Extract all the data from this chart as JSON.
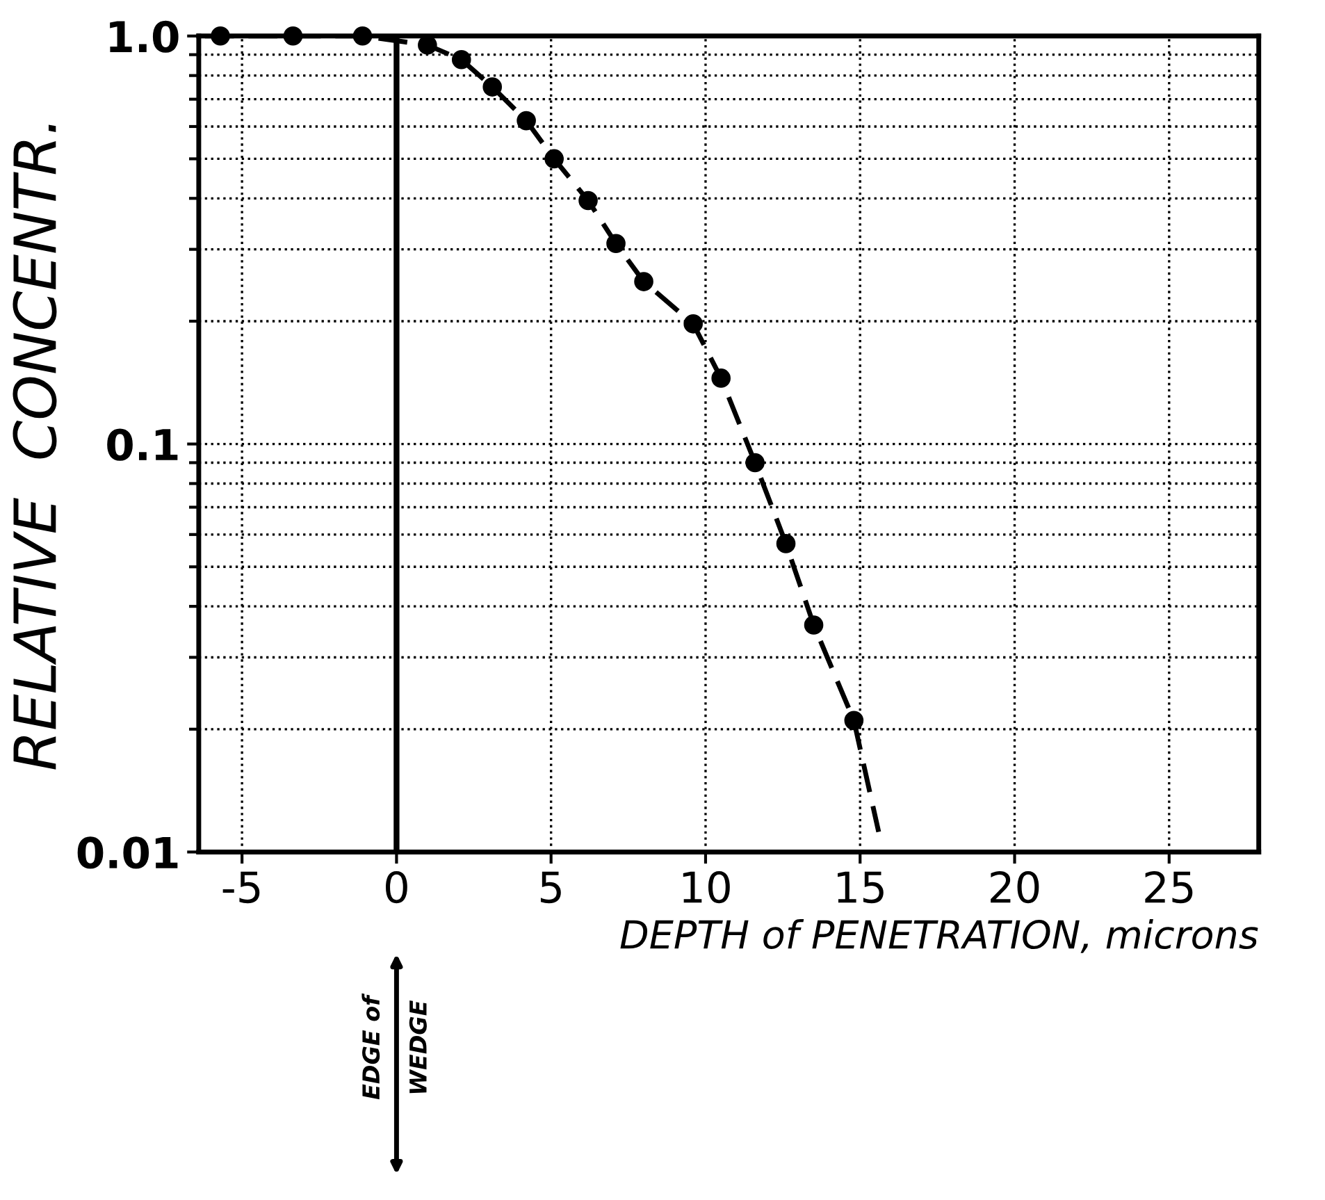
{
  "chart_data": {
    "type": "scatter",
    "xlabel": "DEPTH of PENETRATION, microns",
    "ylabel": "RELATIVE  CONCENTR.",
    "log": "y",
    "xlim": [
      -6.4,
      27.9
    ],
    "ylim": [
      0.01,
      1.0
    ],
    "xticks": [
      -5,
      0,
      5,
      10,
      15,
      20,
      25
    ],
    "yticks": [
      0.01,
      0.1,
      {
        "value": 1,
        "label": "1.0"
      }
    ],
    "grid": true,
    "ref_lines": [
      {
        "axis": "x",
        "value": 0,
        "label": "EDGE of\nWEDGE"
      }
    ],
    "series": [
      {
        "color": "#000000",
        "marker": "circle",
        "x": [
          -5.7,
          -3.35,
          -1.1,
          1.0,
          2.1,
          3.1,
          4.2,
          5.1,
          6.2,
          7.1,
          8.0,
          9.6,
          10.5,
          11.6,
          12.6,
          13.5,
          14.8
        ],
        "values": [
          1.0,
          1.0,
          1.0,
          0.95,
          0.875,
          0.75,
          0.62,
          0.5,
          0.395,
          0.31,
          0.25,
          0.197,
          0.145,
          0.09,
          0.057,
          0.036,
          0.021
        ]
      },
      {
        "type": "line",
        "color": "#000000",
        "line_style": "dashed",
        "x": [
          -6.2,
          -1.1,
          1.0,
          2.1,
          3.1,
          4.2,
          5.1,
          6.2,
          7.1,
          8.0,
          9.6,
          10.5,
          11.6,
          12.6,
          13.5,
          14.8,
          15.6
        ],
        "values": [
          1.0,
          1.0,
          0.95,
          0.875,
          0.75,
          0.62,
          0.5,
          0.395,
          0.31,
          0.25,
          0.197,
          0.145,
          0.09,
          0.057,
          0.036,
          0.021,
          0.0112
        ]
      }
    ]
  }
}
